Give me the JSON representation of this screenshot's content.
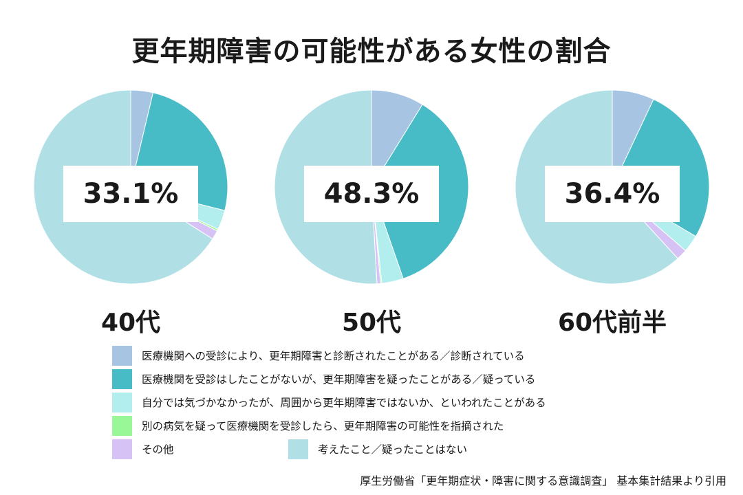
{
  "title": "更年期障害の可能性がある女性の割合",
  "colors": {
    "diagnosed": "#a7c5e3",
    "suspected": "#48bcc6",
    "told_by_others": "#b2eeee",
    "found_other_illness": "#99f797",
    "other": "#d6c2f5",
    "never": "#b0e0e6"
  },
  "chart_data": [
    {
      "type": "pie",
      "label": "40代",
      "highlight": "33.1%",
      "slices": [
        {
          "key": "diagnosed",
          "value": 3.7
        },
        {
          "key": "suspected",
          "value": 25.2
        },
        {
          "key": "told_by_others",
          "value": 3.3
        },
        {
          "key": "found_other_illness",
          "value": 0.3
        },
        {
          "key": "other",
          "value": 1.5
        },
        {
          "key": "never",
          "value": 66.0
        }
      ]
    },
    {
      "type": "pie",
      "label": "50代",
      "highlight": "48.3%",
      "slices": [
        {
          "key": "diagnosed",
          "value": 8.8
        },
        {
          "key": "suspected",
          "value": 35.9
        },
        {
          "key": "told_by_others",
          "value": 3.6
        },
        {
          "key": "found_other_illness",
          "value": 0.2
        },
        {
          "key": "other",
          "value": 0.6
        },
        {
          "key": "never",
          "value": 50.9
        }
      ]
    },
    {
      "type": "pie",
      "label": "60代前半",
      "highlight": "36.4%",
      "slices": [
        {
          "key": "diagnosed",
          "value": 7.0
        },
        {
          "key": "suspected",
          "value": 26.5
        },
        {
          "key": "told_by_others",
          "value": 2.9
        },
        {
          "key": "found_other_illness",
          "value": 0.0
        },
        {
          "key": "other",
          "value": 1.8
        },
        {
          "key": "never",
          "value": 61.8
        }
      ]
    }
  ],
  "legend": [
    {
      "key": "diagnosed",
      "label": "医療機関への受診により、更年期障害と診断されたことがある／診断されている"
    },
    {
      "key": "suspected",
      "label": "医療機関を受診はしたことがないが、更年期障害を疑ったことがある／疑っている"
    },
    {
      "key": "told_by_others",
      "label": "自分では気づかなかったが、周囲から更年期障害ではないか、といわれたことがある"
    },
    {
      "key": "found_other_illness",
      "label": "別の病気を疑って医療機関を受診したら、更年期障害の可能性を指摘された"
    },
    {
      "key": "other",
      "label": "その他"
    },
    {
      "key": "never",
      "label": "考えたこと／疑ったことはない"
    }
  ],
  "source": "厚生労働省「更年期症状・障害に関する意識調査」 基本集計結果より引用"
}
